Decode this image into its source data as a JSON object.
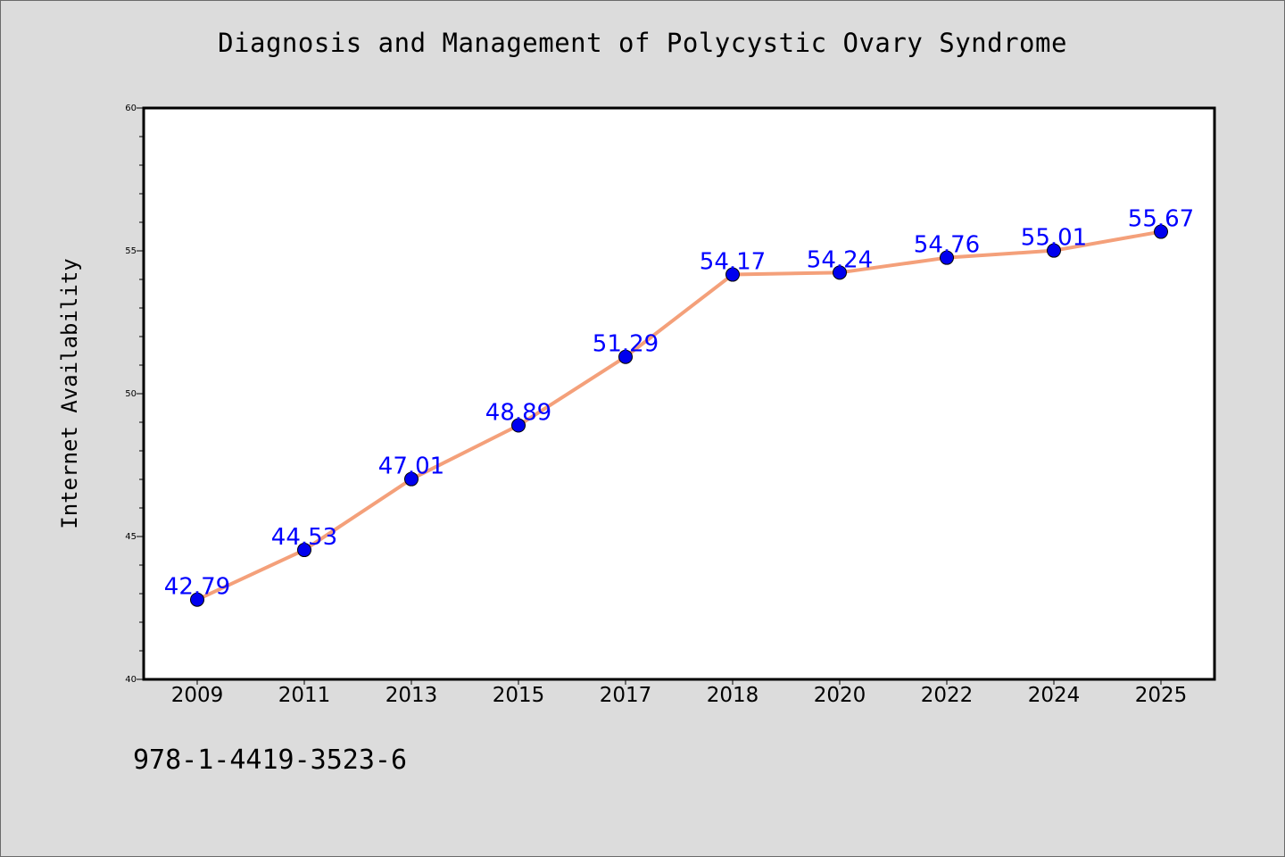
{
  "chart_data": {
    "type": "line",
    "title": "Diagnosis and Management of Polycystic Ovary Syndrome",
    "xlabel": "",
    "ylabel": "Internet Availability",
    "categories": [
      "2009",
      "2011",
      "2013",
      "2015",
      "2017",
      "2018",
      "2020",
      "2022",
      "2024",
      "2025"
    ],
    "series": [
      {
        "values": [
          42.79,
          44.53,
          47.01,
          48.89,
          51.29,
          54.17,
          54.24,
          54.76,
          55.01,
          55.67
        ],
        "data_labels": [
          "42.79",
          "44.53",
          "47.01",
          "48.89",
          "51.29",
          "54.17",
          "54.24",
          "54.76",
          "55.01",
          "55.67"
        ],
        "line_color": "#f4a07a",
        "marker_color": "#0000ee",
        "label_color": "#0000ff"
      }
    ],
    "ylim": [
      40,
      60
    ],
    "yticks": [
      "40",
      "45",
      "50",
      "55",
      "60"
    ],
    "grid": false,
    "legend": "none"
  },
  "footer": {
    "note": "978-1-4419-3523-6"
  }
}
